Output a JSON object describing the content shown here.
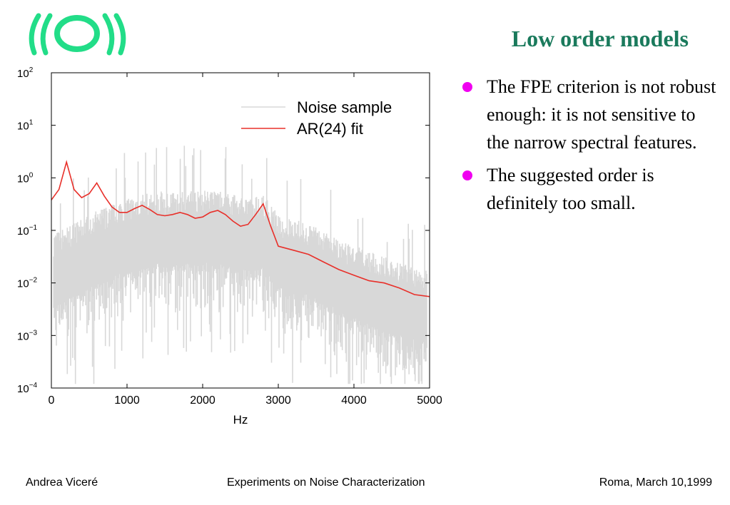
{
  "slide": {
    "title": "Low order models",
    "bullets": [
      "The FPE criterion is not robust enough: it is not sensitive to the narrow spectral features.",
      "The suggested order is definitely too small."
    ],
    "footer_left": "Andrea Viceré",
    "footer_center": "Experiments on Noise Characterization",
    "footer_right": "Roma, March 10,1999",
    "logo_color": "#22dd88",
    "title_color": "#1a7a5c",
    "bullet_color": "#f000f0"
  },
  "chart_data": {
    "type": "line",
    "xlabel": "Hz",
    "ylabel": "",
    "xlim": [
      0,
      5000
    ],
    "ylim": [
      0.0001,
      100
    ],
    "yscale": "log",
    "x_ticks": [
      0,
      1000,
      2000,
      3000,
      4000,
      5000
    ],
    "y_tick_labels": [
      {
        "base": "10",
        "exp": "2",
        "value": 100
      },
      {
        "base": "10",
        "exp": "1",
        "value": 10
      },
      {
        "base": "10",
        "exp": "0",
        "value": 1
      },
      {
        "base": "10",
        "exp": "−1",
        "value": 0.1
      },
      {
        "base": "10",
        "exp": "−2",
        "value": 0.01
      },
      {
        "base": "10",
        "exp": "−3",
        "value": 0.001
      },
      {
        "base": "10",
        "exp": "−4",
        "value": 0.0001
      }
    ],
    "legend_position": "top-right",
    "series": [
      {
        "name": "Noise sample",
        "color": "#d8d8d8",
        "x": [
          0,
          200,
          400,
          600,
          800,
          1000,
          1200,
          1400,
          1600,
          1800,
          2000,
          2200,
          2400,
          2600,
          2800,
          3000,
          3200,
          3400,
          3600,
          3800,
          4000,
          4200,
          4400,
          4600,
          4800,
          5000
        ],
        "y": [
          0.02,
          0.03,
          0.04,
          0.06,
          0.08,
          0.1,
          0.12,
          0.14,
          0.13,
          0.14,
          0.15,
          0.14,
          0.12,
          0.1,
          0.12,
          0.05,
          0.04,
          0.035,
          0.025,
          0.018,
          0.013,
          0.01,
          0.008,
          0.006,
          0.005,
          0.005
        ]
      },
      {
        "name": "AR(24) fit",
        "color": "#e8302a",
        "x": [
          0,
          100,
          200,
          300,
          400,
          500,
          600,
          700,
          800,
          900,
          1000,
          1100,
          1200,
          1300,
          1400,
          1500,
          1600,
          1700,
          1800,
          1900,
          2000,
          2100,
          2200,
          2300,
          2400,
          2500,
          2600,
          2700,
          2800,
          2900,
          3000,
          3200,
          3400,
          3600,
          3800,
          4000,
          4200,
          4400,
          4600,
          4800,
          5000
        ],
        "y": [
          0.38,
          0.6,
          2.0,
          0.6,
          0.42,
          0.5,
          0.8,
          0.45,
          0.28,
          0.22,
          0.22,
          0.26,
          0.3,
          0.25,
          0.2,
          0.19,
          0.2,
          0.22,
          0.2,
          0.17,
          0.18,
          0.22,
          0.24,
          0.2,
          0.15,
          0.12,
          0.13,
          0.2,
          0.32,
          0.12,
          0.05,
          0.042,
          0.035,
          0.025,
          0.018,
          0.014,
          0.011,
          0.01,
          0.008,
          0.006,
          0.0055
        ]
      }
    ]
  }
}
